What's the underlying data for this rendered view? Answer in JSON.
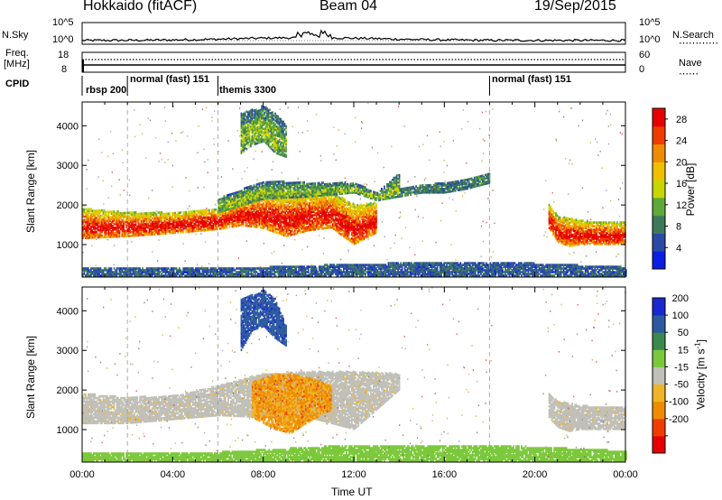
{
  "header": {
    "station": "Hokkaido (fitACF)",
    "beam": "Beam 04",
    "date": "19/Sep/2015"
  },
  "top_panels": {
    "nsky_label": "N.Sky",
    "nsearch_label": "N.Search",
    "nsky_ticks": [
      "10^5",
      "10^0"
    ],
    "nsearch_ticks": [
      "10^5",
      "10^0"
    ],
    "freq_label": "Freq.",
    "freq_unit": "[MHz]",
    "freq_ticks": [
      "18",
      "8"
    ],
    "nave_label": "Nave",
    "nave_ticks": [
      "60",
      "0"
    ],
    "cpid_label": "CPID",
    "cpid_segments": [
      {
        "label": "rbsp  200",
        "start_hour": 0.0
      },
      {
        "label": "normal (fast)  151",
        "start_hour": 2.0
      },
      {
        "label": "themis  3300",
        "start_hour": 6.0
      },
      {
        "label": "normal (fast)  151",
        "start_hour": 18.0
      }
    ]
  },
  "colors": {
    "power": [
      "#0a1ee6",
      "#2a4aa6",
      "#3d7a5a",
      "#5fa83a",
      "#c8d600",
      "#f0c000",
      "#f08c00",
      "#f03c00",
      "#e60000"
    ],
    "velocity": [
      "#e60000",
      "#f03c00",
      "#f08c00",
      "#f0b428",
      "#c0c0b8",
      "#7cc83c",
      "#3a8a50",
      "#2c5aa0",
      "#1a28d0"
    ],
    "noise": [
      "#d43c3c",
      "#8c8ce0",
      "#a0c040",
      "#e0a020",
      "#707070"
    ]
  },
  "chart_data": [
    {
      "type": "heatmap",
      "name": "power",
      "xlabel": "",
      "ylabel": "Slant Range [km]",
      "xlim": [
        0,
        24
      ],
      "ylim": [
        180,
        4600
      ],
      "x_ticks": [
        "00:00",
        "04:00",
        "08:00",
        "12:00",
        "16:00",
        "20:00",
        "00:00"
      ],
      "y_ticks": [
        1000,
        2000,
        3000,
        4000
      ],
      "colorbar": {
        "label": "Power [dB]",
        "ticks": [
          "4",
          "8",
          "12",
          "16",
          "20",
          "24",
          "28"
        ],
        "range": [
          0,
          30
        ]
      },
      "bands": [
        {
          "x": [
            0.0,
            2.0,
            4.0,
            6.0,
            7.0,
            8.0,
            9.0,
            10.0,
            11.0,
            11.5,
            12.0,
            13.0
          ],
          "y_low": [
            1150,
            1200,
            1280,
            1380,
            1480,
            1400,
            1200,
            1350,
            1420,
            1200,
            1000,
            1300
          ],
          "y_high": [
            1900,
            1800,
            1800,
            1900,
            2150,
            2350,
            2300,
            2300,
            2350,
            2150,
            2000,
            2050
          ],
          "level": 26
        },
        {
          "x": [
            6.0,
            8.0,
            10.0,
            12.0,
            13.0,
            14.0
          ],
          "y_low": [
            1800,
            2150,
            2200,
            2300,
            2100,
            2200
          ],
          "y_high": [
            2150,
            2600,
            2550,
            2550,
            2300,
            2800
          ],
          "level": 12
        },
        {
          "x": [
            14.0,
            15.0,
            16.0,
            17.0,
            18.0
          ],
          "y_low": [
            2200,
            2300,
            2300,
            2400,
            2550
          ],
          "y_high": [
            2400,
            2500,
            2550,
            2650,
            2800
          ],
          "level": 8
        },
        {
          "x": [
            20.6,
            21.0,
            21.5,
            22.0,
            23.0,
            24.0
          ],
          "y_low": [
            1400,
            1050,
            950,
            1000,
            1000,
            1000
          ],
          "y_high": [
            2000,
            1700,
            1650,
            1600,
            1550,
            1550
          ],
          "level": 26
        },
        {
          "x": [
            7.0,
            7.5,
            8.0,
            8.5,
            9.0
          ],
          "y_low": [
            3300,
            3500,
            3600,
            3300,
            3200
          ],
          "y_high": [
            4300,
            4400,
            4500,
            4300,
            4000
          ],
          "level": 12
        },
        {
          "x": [
            0.0,
            6.0,
            12.0,
            18.0,
            24.0
          ],
          "y_low": [
            200,
            200,
            200,
            200,
            200
          ],
          "y_high": [
            420,
            380,
            500,
            560,
            420
          ],
          "level": 6
        }
      ]
    },
    {
      "type": "heatmap",
      "name": "velocity",
      "xlabel": "Time UT",
      "ylabel": "Slant Range [km]",
      "xlim": [
        0,
        24
      ],
      "ylim": [
        180,
        4600
      ],
      "x_ticks": [
        "00:00",
        "04:00",
        "08:00",
        "12:00",
        "16:00",
        "20:00",
        "00:00"
      ],
      "y_ticks": [
        1000,
        2000,
        3000,
        4000
      ],
      "colorbar": {
        "label": "Velocity [m s^-1]",
        "ticks": [
          "200",
          "100",
          "50",
          "15",
          "-15",
          "-50",
          "-100",
          "-200"
        ],
        "range": [
          -250,
          250
        ]
      },
      "bands": [
        {
          "x": [
            0.0,
            2.0,
            4.0,
            6.0,
            8.0,
            10.0,
            12.0,
            14.0
          ],
          "y_low": [
            1150,
            1150,
            1250,
            1350,
            1300,
            1300,
            1000,
            2000
          ],
          "y_high": [
            1900,
            1800,
            1850,
            2100,
            2400,
            2450,
            2450,
            2400
          ],
          "level": 0
        },
        {
          "x": [
            7.5,
            8.5,
            9.2,
            10.0,
            11.0
          ],
          "y_low": [
            1300,
            1000,
            900,
            1200,
            1500
          ],
          "y_high": [
            2200,
            2400,
            2400,
            2300,
            2100
          ],
          "level": -60
        },
        {
          "x": [
            20.6,
            21.0,
            21.5,
            22.0,
            23.0,
            24.0
          ],
          "y_low": [
            1300,
            1050,
            950,
            1000,
            1000,
            1000
          ],
          "y_high": [
            1900,
            1700,
            1650,
            1600,
            1550,
            1550
          ],
          "level": 0
        },
        {
          "x": [
            7.0,
            7.5,
            8.0,
            8.5,
            9.0
          ],
          "y_low": [
            3000,
            3500,
            3600,
            3300,
            3100
          ],
          "y_high": [
            4300,
            4400,
            4500,
            4300,
            3600
          ],
          "level": 170
        },
        {
          "x": [
            0.0,
            6.0,
            12.0,
            18.0,
            24.0
          ],
          "y_low": [
            200,
            200,
            200,
            200,
            200
          ],
          "y_high": [
            420,
            420,
            600,
            600,
            450
          ],
          "level": 30
        }
      ]
    }
  ]
}
